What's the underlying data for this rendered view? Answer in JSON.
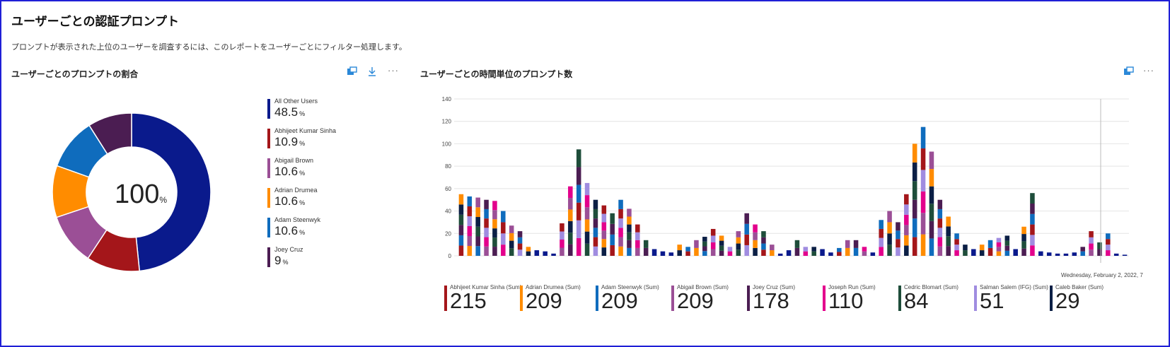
{
  "page": {
    "title": "ユーザーごとの認証プロンプト",
    "subtitle": "プロンプトが表示された上位のユーザーを調査するには、このレポートをユーザーごとにフィルター処理します。"
  },
  "donut_section": {
    "title": "ユーザーごとのプロンプトの割合",
    "more_label": "···",
    "center_value": "100",
    "center_unit": "%"
  },
  "bar_section": {
    "title": "ユーザーごとの時間単位のプロンプト数",
    "more_label": "···",
    "date_label": "Wednesday, February 2, 2022, 7"
  },
  "colors": {
    "all_other": "#0a1a8c",
    "abhijeet": "#a4161a",
    "abigail": "#9b4f96",
    "adrian": "#ff8c00",
    "adam": "#0f6cbd",
    "joey": "#4b1d52",
    "joseph": "#e3008c",
    "cedric": "#1e4d3a",
    "salman": "#a08ce0",
    "caleb": "#0b1f45"
  },
  "chart_data": [
    {
      "type": "pie",
      "title": "ユーザーごとのプロンプトの割合",
      "center_label": "100%",
      "slices": [
        {
          "label": "All Other Users",
          "value": 48.5,
          "value_text": "48.5",
          "color": "#0a1a8c"
        },
        {
          "label": "Abhijeet Kumar Sinha",
          "value": 10.9,
          "value_text": "10.9",
          "color": "#a4161a"
        },
        {
          "label": "Abigail Brown",
          "value": 10.6,
          "value_text": "10.6",
          "color": "#9b4f96"
        },
        {
          "label": "Adrian Drumea",
          "value": 10.6,
          "value_text": "10.6",
          "color": "#ff8c00"
        },
        {
          "label": "Adam Steenwyk",
          "value": 10.6,
          "value_text": "10.6",
          "color": "#0f6cbd"
        },
        {
          "label": "Joey Cruz",
          "value": 9,
          "value_text": "9",
          "color": "#4b1d52"
        }
      ],
      "unit": "%"
    },
    {
      "type": "bar",
      "stacked": true,
      "title": "ユーザーごとの時間単位のプロンプト数",
      "ylim": [
        0,
        140
      ],
      "yticks": [
        0,
        20,
        40,
        60,
        80,
        100,
        120,
        140
      ],
      "grid": true,
      "totals": [
        55,
        53,
        52,
        50,
        49,
        40,
        27,
        22,
        8,
        5,
        4,
        2,
        29,
        62,
        95,
        65,
        50,
        45,
        38,
        50,
        42,
        28,
        14,
        6,
        4,
        3,
        10,
        8,
        14,
        17,
        24,
        18,
        8,
        22,
        38,
        28,
        22,
        10,
        2,
        5,
        14,
        8,
        8,
        6,
        3,
        7,
        14,
        14,
        8,
        3,
        32,
        40,
        30,
        55,
        100,
        115,
        93,
        50,
        35,
        20,
        10,
        6,
        10,
        14,
        16,
        18,
        6,
        26,
        56,
        4,
        3,
        2,
        2,
        3,
        8,
        22,
        12,
        20,
        2,
        1
      ],
      "series_totals": [
        {
          "name": "Abhijeet Kumar Sinha (Sum)",
          "total": 215,
          "color": "#a4161a"
        },
        {
          "name": "Adrian Drumea (Sum)",
          "total": 209,
          "color": "#ff8c00"
        },
        {
          "name": "Adam Steenwyk (Sum)",
          "total": 209,
          "color": "#0f6cbd"
        },
        {
          "name": "Abigail Brown (Sum)",
          "total": 209,
          "color": "#9b4f96"
        },
        {
          "name": "Joey Cruz (Sum)",
          "total": 178,
          "color": "#4b1d52"
        },
        {
          "name": "Joseph Run (Sum)",
          "total": 110,
          "color": "#e3008c"
        },
        {
          "name": "Cedric Blomart (Sum)",
          "total": 84,
          "color": "#1e4d3a"
        },
        {
          "name": "Salman Salem (IFG) (Sum)",
          "total": 51,
          "color": "#a08ce0"
        },
        {
          "name": "Caleb Baker (Sum)",
          "total": 29,
          "color": "#0b1f45"
        }
      ]
    }
  ]
}
